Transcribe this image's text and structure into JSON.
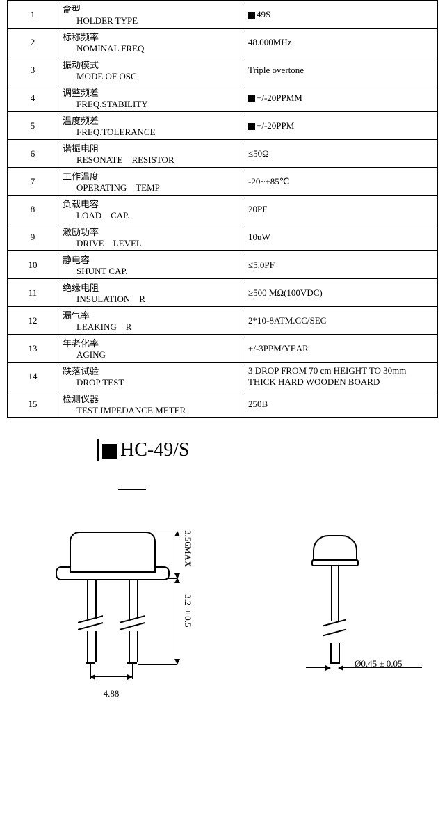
{
  "rows": [
    {
      "num": "1",
      "cn": "盒型",
      "en": "HOLDER TYPE",
      "value": "49S",
      "marker": true
    },
    {
      "num": "2",
      "cn": "标称频率",
      "en": "NOMINAL FREQ",
      "value": "48.000MHz",
      "marker": false
    },
    {
      "num": "3",
      "cn": "振动模式",
      "en": "MODE OF OSC",
      "value": "Triple overtone",
      "marker": false
    },
    {
      "num": "4",
      "cn": "调整频差",
      "en": "FREQ.STABILITY",
      "value": "+/-20PPMM",
      "marker": true
    },
    {
      "num": "5",
      "cn": "温度频差",
      "en": "FREQ.TOLERANCE",
      "value": "+/-20PPM",
      "marker": true
    },
    {
      "num": "6",
      "cn": "谐振电阻",
      "en": "RESONATE RESISTOR",
      "value": "≤50Ω",
      "marker": false
    },
    {
      "num": "7",
      "cn": "工作温度",
      "en": "OPERATING TEMP",
      "value": "-20~+85℃",
      "marker": false
    },
    {
      "num": "8",
      "cn": "负载电容",
      "en": "LOAD CAP.",
      "value": "20PF",
      "marker": false
    },
    {
      "num": "9",
      "cn": "激励功率",
      "en": "DRIVE LEVEL",
      "value": "10uW",
      "marker": false
    },
    {
      "num": "10",
      "cn": "静电容",
      "en": "SHUNT CAP.",
      "value": "≤5.0PF",
      "marker": false
    },
    {
      "num": "11",
      "cn": "绝缘电阻",
      "en": "INSULATION R",
      "value": "≥500 MΩ(100VDC)",
      "marker": false
    },
    {
      "num": "12",
      "cn": "漏气率",
      "en": "LEAKING R",
      "value": "2*10-8ATM.CC/SEC",
      "marker": false
    },
    {
      "num": "13",
      "cn": "年老化率",
      "en": "AGING",
      "value": "+/-3PPM/YEAR",
      "marker": false
    },
    {
      "num": "14",
      "cn": "跌落试验",
      "en": "DROP TEST",
      "value": "3 DROP FROM 70 cm HEIGHT TO 30mm THICK HARD WOODEN BOARD",
      "marker": false
    },
    {
      "num": "15",
      "cn": "检测仪器",
      "en": "TEST IMPEDANCE METER",
      "value": "250B",
      "marker": false
    }
  ],
  "title": "HC-49/S",
  "dims": {
    "body_h": "3.56MAX",
    "lead_len": "3.2±0.5",
    "lead_spacing": "4.88",
    "lead_dia": "Ø0.45 ± 0.05"
  }
}
